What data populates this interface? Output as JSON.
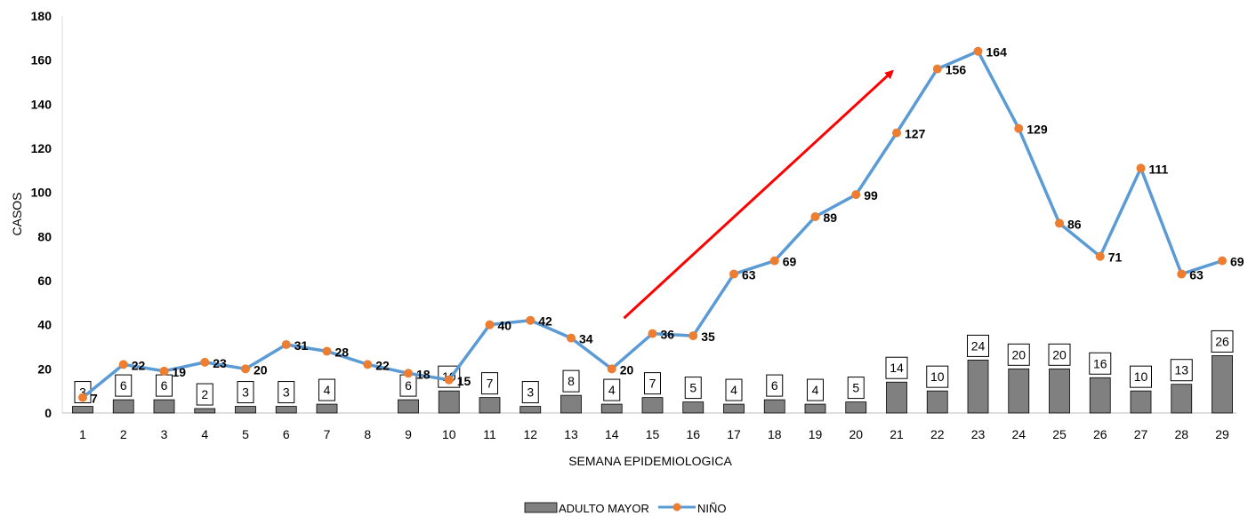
{
  "chart_data": {
    "type": "bar+line",
    "xlabel": "SEMANA EPIDEMIOLOGICA",
    "ylabel": "CASOS",
    "ylim": [
      0,
      180
    ],
    "yticks": [
      0,
      20,
      40,
      60,
      80,
      100,
      120,
      140,
      160,
      180
    ],
    "categories": [
      "1",
      "2",
      "3",
      "4",
      "5",
      "6",
      "7",
      "8",
      "9",
      "10",
      "11",
      "12",
      "13",
      "14",
      "15",
      "16",
      "17",
      "18",
      "19",
      "20",
      "21",
      "22",
      "23",
      "24",
      "25",
      "26",
      "27",
      "28",
      "29"
    ],
    "series": [
      {
        "name": "ADULTO MAYOR",
        "type": "bar",
        "color": "#808080",
        "values": [
          3,
          6,
          6,
          2,
          3,
          3,
          4,
          0,
          6,
          10,
          7,
          3,
          8,
          4,
          7,
          5,
          4,
          6,
          4,
          5,
          14,
          10,
          24,
          20,
          20,
          16,
          10,
          13,
          26
        ],
        "labels": [
          "3",
          "6",
          "6",
          "2",
          "3",
          "3",
          "4",
          "",
          "6",
          "10",
          "7",
          "3",
          "8",
          "4",
          "7",
          "5",
          "4",
          "6",
          "4",
          "5",
          "14",
          "10",
          "24",
          "20",
          "20",
          "16",
          "10",
          "13",
          "26"
        ]
      },
      {
        "name": "NIÑO",
        "type": "line",
        "color": "#5B9BD5",
        "marker_color": "#ED7D31",
        "values": [
          7,
          22,
          19,
          23,
          20,
          31,
          28,
          22,
          18,
          15,
          40,
          42,
          34,
          20,
          36,
          35,
          63,
          69,
          89,
          99,
          127,
          156,
          164,
          129,
          86,
          71,
          111,
          63,
          69
        ]
      }
    ],
    "annotations": [
      {
        "type": "arrow",
        "color": "#FF0000",
        "from": {
          "x": 14.3,
          "y": 43
        },
        "to": {
          "x": 20.9,
          "y": 155
        }
      }
    ],
    "legend_position": "bottom",
    "grid": false
  }
}
